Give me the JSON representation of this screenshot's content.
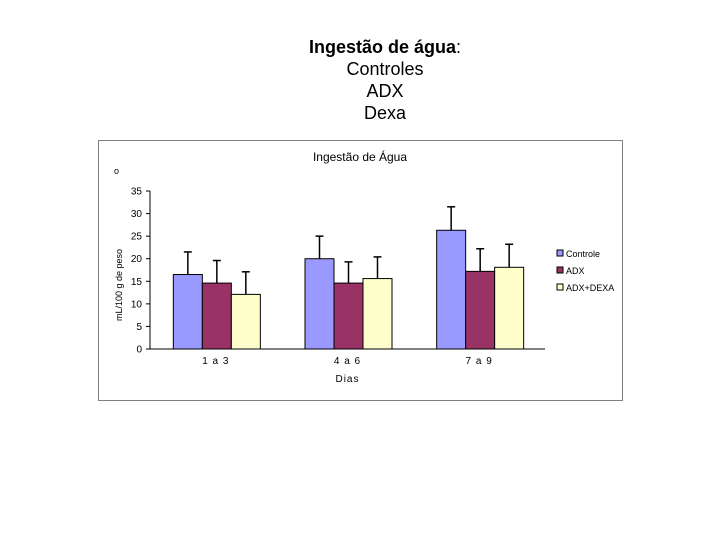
{
  "slide": {
    "title_bold": "Ingestão de água",
    "title_colon": ":",
    "lines": [
      "Controles",
      "ADX",
      "Dexa"
    ]
  },
  "stray_mark": "o",
  "chart_data": {
    "type": "bar",
    "title": "Ingestão de Água",
    "xlabel": "Dias",
    "ylabel": "mL/100 g de peso",
    "categories": [
      "1 a 3",
      "4 a 6",
      "7 a 9"
    ],
    "ylim": [
      0,
      35
    ],
    "yticks": [
      0,
      5,
      10,
      15,
      20,
      25,
      30,
      35
    ],
    "grid": false,
    "legend_position": "right",
    "series": [
      {
        "name": "Controle",
        "color": "#9999ff",
        "values": [
          16.5,
          20,
          26.3
        ],
        "errors": [
          5,
          5,
          5.2
        ]
      },
      {
        "name": "ADX",
        "color": "#993366",
        "values": [
          14.6,
          14.6,
          17.2
        ],
        "errors": [
          5,
          4.7,
          5
        ]
      },
      {
        "name": "ADX+DEXA",
        "color": "#ffffcc",
        "values": [
          12.1,
          15.6,
          18.1
        ],
        "errors": [
          5,
          4.8,
          5.1
        ]
      }
    ]
  }
}
